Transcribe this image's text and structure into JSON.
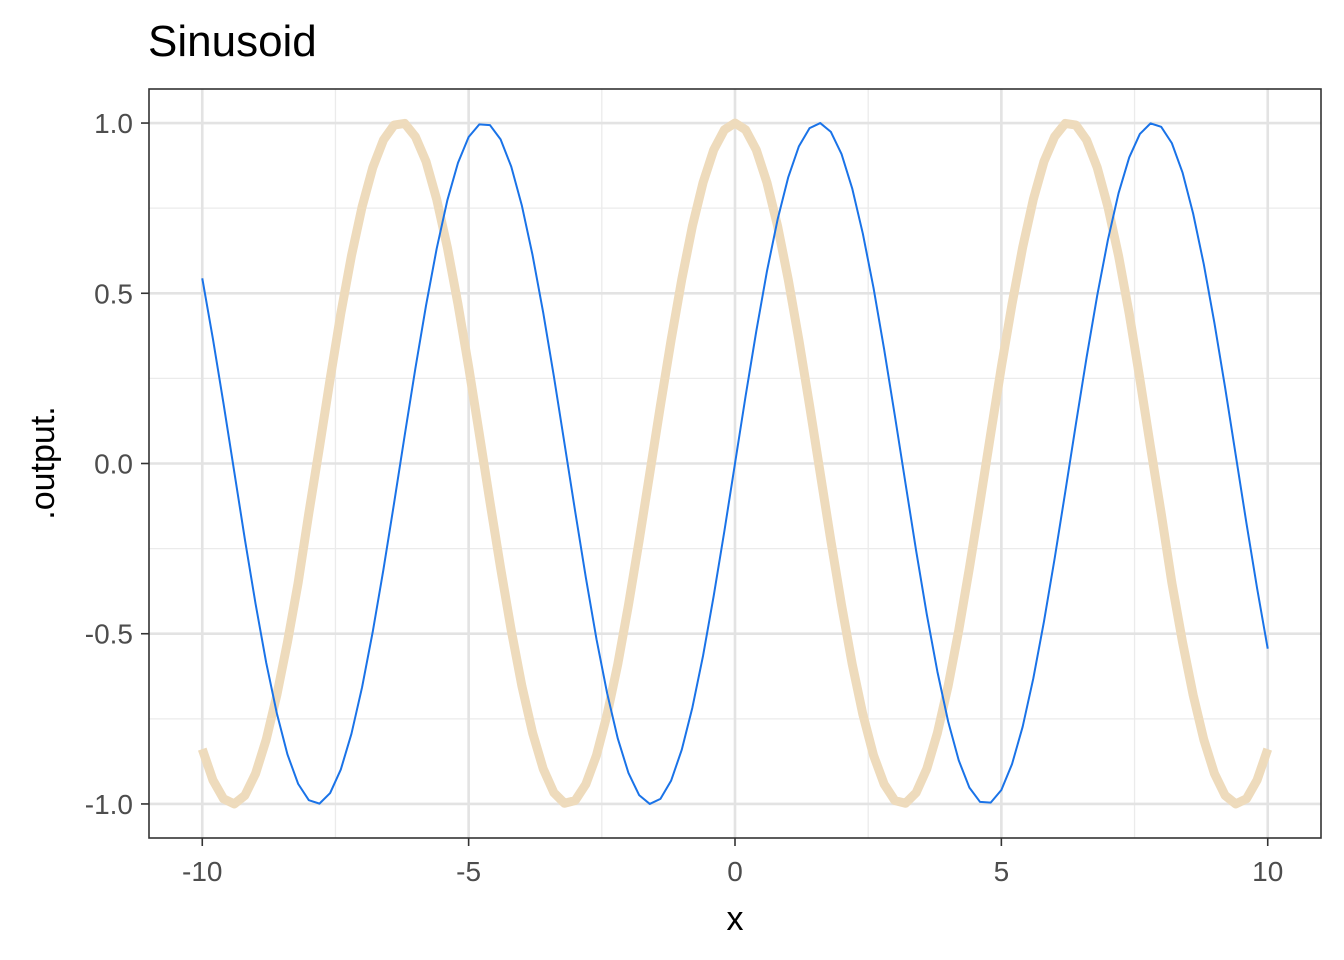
{
  "chart_data": {
    "type": "line",
    "title": "Sinusoid",
    "xlabel": "x",
    "ylabel": ".output.",
    "xlim": [
      -11,
      11
    ],
    "ylim": [
      -1.1,
      1.1
    ],
    "x_ticks": [
      -10,
      -5,
      0,
      5,
      10
    ],
    "x_tick_labels": [
      "-10",
      "-5",
      "0",
      "5",
      "10"
    ],
    "y_ticks": [
      -1.0,
      -0.5,
      0.0,
      0.5,
      1.0
    ],
    "y_tick_labels": [
      "-1.0",
      "-0.5",
      "0.0",
      "0.5",
      "1.0"
    ],
    "grid": true,
    "x": [
      -10,
      -9.8,
      -9.6,
      -9.4,
      -9.2,
      -9,
      -8.8,
      -8.6,
      -8.4,
      -8.2,
      -8,
      -7.8,
      -7.6,
      -7.4,
      -7.2,
      -7,
      -6.8,
      -6.6,
      -6.4,
      -6.2,
      -6,
      -5.8,
      -5.6,
      -5.4,
      -5.2,
      -5,
      -4.8,
      -4.6,
      -4.4,
      -4.2,
      -4,
      -3.8,
      -3.6,
      -3.4,
      -3.2,
      -3,
      -2.8,
      -2.6,
      -2.4,
      -2.2,
      -2,
      -1.8,
      -1.6,
      -1.4,
      -1.2,
      -1,
      -0.8,
      -0.6,
      -0.4,
      -0.2,
      0,
      0.2,
      0.4,
      0.6,
      0.8,
      1,
      1.2,
      1.4,
      1.6,
      1.8,
      2,
      2.2,
      2.4,
      2.6,
      2.8,
      3,
      3.2,
      3.4,
      3.6,
      3.8,
      4,
      4.2,
      4.4,
      4.6,
      4.8,
      5,
      5.2,
      5.4,
      5.6,
      5.8,
      6,
      6.2,
      6.4,
      6.6,
      6.8,
      7,
      7.2,
      7.4,
      7.6,
      7.8,
      8,
      8.2,
      8.4,
      8.6,
      8.8,
      9,
      9.2,
      9.4,
      9.6,
      9.8,
      10
    ],
    "series": [
      {
        "color": "#eedbbc",
        "width": 9,
        "values": [
          -0.839,
          -0.93,
          -0.985,
          -1.0,
          -0.975,
          -0.911,
          -0.811,
          -0.68,
          -0.524,
          -0.35,
          -0.146,
          0.048,
          0.248,
          0.44,
          0.61,
          0.754,
          0.869,
          0.95,
          0.994,
          0.999,
          0.96,
          0.887,
          0.776,
          0.635,
          0.468,
          0.284,
          0.087,
          -0.113,
          -0.307,
          -0.49,
          -0.654,
          -0.791,
          -0.897,
          -0.967,
          -0.998,
          -0.99,
          -0.942,
          -0.857,
          -0.737,
          -0.589,
          -0.416,
          -0.227,
          -0.029,
          0.17,
          0.362,
          0.54,
          0.697,
          0.825,
          0.921,
          0.98,
          1.0,
          0.98,
          0.921,
          0.825,
          0.697,
          0.54,
          0.362,
          0.17,
          -0.029,
          -0.227,
          -0.416,
          -0.589,
          -0.737,
          -0.857,
          -0.942,
          -0.99,
          -0.998,
          -0.967,
          -0.897,
          -0.791,
          -0.654,
          -0.49,
          -0.307,
          -0.113,
          0.087,
          0.284,
          0.468,
          0.635,
          0.776,
          0.887,
          0.96,
          0.999,
          0.994,
          0.95,
          0.869,
          0.754,
          0.61,
          0.44,
          0.248,
          0.048,
          -0.146,
          -0.35,
          -0.524,
          -0.68,
          -0.811,
          -0.911,
          -0.975,
          -1.0,
          -0.985,
          -0.93,
          -0.839
        ]
      },
      {
        "color": "#1a73e8",
        "width": 2,
        "values": [
          0.544,
          0.366,
          0.175,
          -0.024,
          -0.223,
          -0.412,
          -0.585,
          -0.734,
          -0.855,
          -0.941,
          -0.989,
          -0.999,
          -0.968,
          -0.899,
          -0.794,
          -0.657,
          -0.494,
          -0.312,
          -0.117,
          0.083,
          0.279,
          0.464,
          0.631,
          0.773,
          0.883,
          0.959,
          0.996,
          0.994,
          0.952,
          0.872,
          0.757,
          0.612,
          0.443,
          0.256,
          0.058,
          -0.141,
          -0.335,
          -0.516,
          -0.675,
          -0.808,
          -0.909,
          -0.974,
          -1.0,
          -0.985,
          -0.932,
          -0.841,
          -0.717,
          -0.565,
          -0.389,
          -0.199,
          0.0,
          0.199,
          0.389,
          0.565,
          0.717,
          0.841,
          0.932,
          0.985,
          1.0,
          0.974,
          0.909,
          0.808,
          0.675,
          0.516,
          0.335,
          0.141,
          -0.058,
          -0.256,
          -0.443,
          -0.612,
          -0.757,
          -0.872,
          -0.952,
          -0.994,
          -0.996,
          -0.959,
          -0.883,
          -0.773,
          -0.631,
          -0.464,
          -0.279,
          -0.083,
          0.117,
          0.312,
          0.494,
          0.657,
          0.794,
          0.899,
          0.968,
          0.999,
          0.989,
          0.941,
          0.855,
          0.734,
          0.585,
          0.412,
          0.223,
          0.024,
          -0.175,
          -0.366,
          -0.544
        ]
      }
    ]
  }
}
